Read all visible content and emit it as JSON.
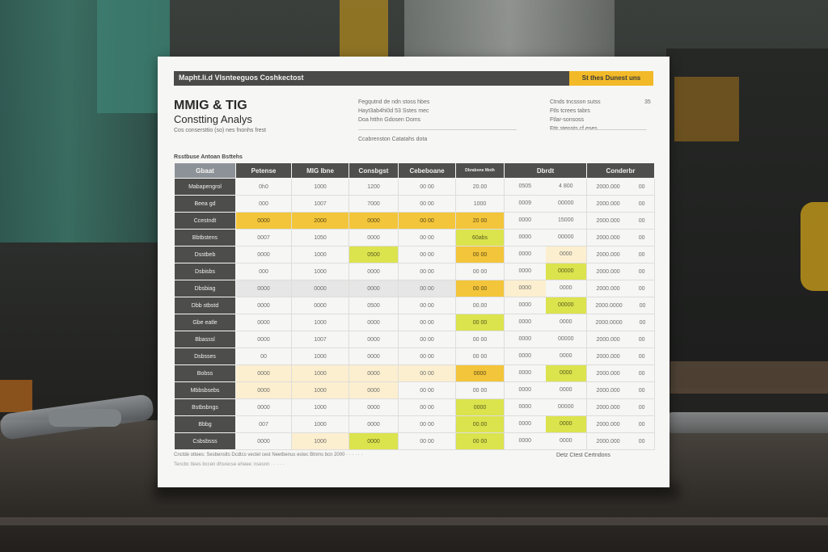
{
  "sheet": {
    "header_title": "Mapht.li.d Vlsnteeguos Coshkectost",
    "header_tag": "St thes Dunest uns",
    "title_line1": "MMIG & TIG",
    "title_line2": "Constting Analys",
    "subtitle": "Cos consersttio (so) nes fnonhs frest",
    "meta_col1": [
      "Fegqutnd de ndn stoss hbes",
      "Hayt3ab4hi0d 53 Sstes mec",
      "Doa htthn Gdosen Doms",
      "Ccabrenston Catatahs dota"
    ],
    "meta_col2": [
      "Ctnds tncsson sutss",
      "Ftls tcrees tabrs",
      "Ftlar-sonsoss",
      "Fttr stensts cf eses"
    ],
    "meta_num": "35",
    "section_label": "Rsstbuse Antoan Bsttehs"
  },
  "table": {
    "headers": [
      "Gbaat",
      "Petense",
      "MIG Ibne",
      "Consbgst",
      "Cebeboane",
      "Dbrdt",
      "Conderbr"
    ],
    "header5_line1": "Dbrabone Moth",
    "rows": [
      {
        "label": "Mabapengrol",
        "cells": [
          "0h0",
          "1000",
          "1200",
          "00 00",
          "20.00",
          "0505 · 4 800",
          "2000.000 · 00"
        ]
      },
      {
        "label": "Beea gd",
        "cells": [
          "000",
          "1007",
          "7000",
          "00 00",
          "1000",
          "0009 · 00000",
          "2000.000 · 00"
        ]
      },
      {
        "label": "Ccestndt",
        "cells": [
          "0000",
          "2000",
          "0000",
          "00 00",
          "20 00",
          "0000 · 15000",
          "2000.000 · 00"
        ]
      },
      {
        "label": "Bbtbstens",
        "cells": [
          "0007",
          "1050",
          "0000",
          "00 00",
          "60abs",
          "0000 · 00000",
          "2000.000 · 00"
        ]
      },
      {
        "label": "Dsstbeb",
        "cells": [
          "0000",
          "1000",
          "0500",
          "00 00",
          "00 00",
          "0000 · 0000",
          "2000.000 · 00"
        ]
      },
      {
        "label": "Dsbisbs",
        "cells": [
          "000",
          "1000",
          "0000",
          "00 00",
          "00 00",
          "0000 · 00000",
          "2000.000 · 00"
        ]
      },
      {
        "label": "Dbsbiag",
        "cells": [
          "0000",
          "0000",
          "0000",
          "00 00",
          "00 00",
          "0000 · 0000",
          "2000.000 · 00"
        ]
      },
      {
        "label": "Dbb stbstd",
        "cells": [
          "0000",
          "0000",
          "0500",
          "00 00",
          "00.00",
          "0000 · 00000",
          "2000.0000 · 00"
        ]
      },
      {
        "label": "Gbe eatle",
        "cells": [
          "0000",
          "1000",
          "0000",
          "00 00",
          "00 00",
          "0000 · 0000",
          "2000.0000 · 00"
        ]
      },
      {
        "label": "Bbasssl",
        "cells": [
          "0000",
          "1007",
          "0000",
          "00 00",
          "00 00",
          "0000 · 00000",
          "2000.000 · 00"
        ]
      },
      {
        "label": "Dsbsses",
        "cells": [
          "00",
          "1000",
          "0000",
          "00 00",
          "00 00",
          "0000 · 0000",
          "2000.000 · 00"
        ]
      },
      {
        "label": "Bobss",
        "cells": [
          "0000",
          "1000",
          "0000",
          "00 00",
          "0000",
          "0000 · 0000",
          "2000.000 · 00"
        ]
      },
      {
        "label": "Mbbsbsebs",
        "cells": [
          "0000",
          "1000",
          "0000",
          "00 00",
          "00 00",
          "0000 · 0000",
          "2000.000 · 00"
        ]
      },
      {
        "label": "Bstbsbngs",
        "cells": [
          "0000",
          "1000",
          "0000",
          "00 00",
          "0000",
          "0000 · 00000",
          "2000.000 · 00"
        ]
      },
      {
        "label": "Bbbg",
        "cells": [
          "007",
          "1000",
          "0000",
          "00 00",
          "00.00",
          "0000 · 0000",
          "2000.000 · 00"
        ]
      },
      {
        "label": "Csbsbsss",
        "cells": [
          "0000",
          "1000",
          "0000",
          "00 00",
          "00 00",
          "0000 · 0000",
          "2000.000 · 00"
        ]
      }
    ]
  },
  "footer": {
    "line1": "Cnctde ottees: Sesbenslts Dcdtcs vectel cest Neetbenus estec Btnms bcn 2000 · · · · · ·",
    "line2": "Tencbc ttees bccen dhsrecse eheee: nsesnn · · · · ·",
    "right": "Detz Ctest Certndons"
  },
  "colors": {
    "yellow": "#f3c53a",
    "lime": "#dbe34d",
    "pale": "#fcefcf",
    "header_dark": "#4f4f4d",
    "tag": "#f2b928"
  }
}
